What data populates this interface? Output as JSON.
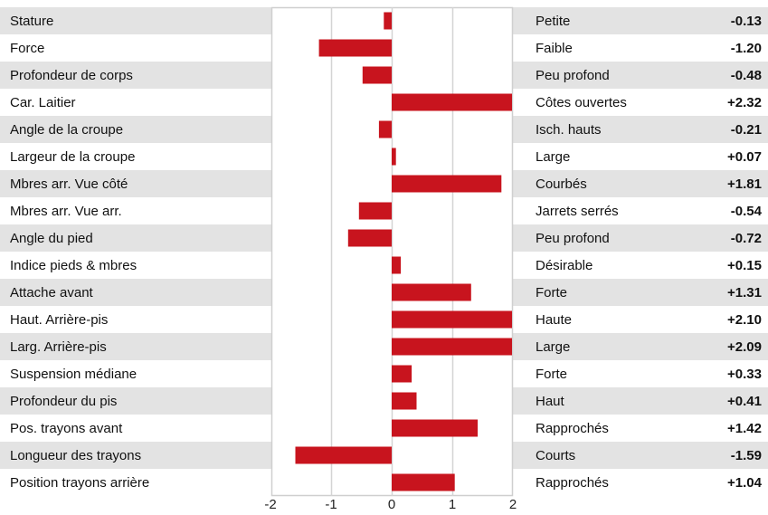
{
  "chart_data": {
    "type": "bar",
    "orientation": "horizontal",
    "title": "",
    "xlabel": "",
    "ylabel": "",
    "xlim": [
      -2,
      2
    ],
    "x_ticks": [
      "-2",
      "-1",
      "0",
      "1",
      "2"
    ],
    "grid": "vertical",
    "bar_color": "#c8141e",
    "row_band_color": "#e3e3e3",
    "categories": [
      "Stature",
      "Force",
      "Profondeur de corps",
      "Car. Laitier",
      "Angle de la croupe",
      "Largeur de la croupe",
      "Mbres arr. Vue côté",
      "Mbres arr. Vue arr.",
      "Angle du pied",
      "Indice pieds & mbres",
      "Attache avant",
      "Haut. Arrière-pis",
      "Larg. Arrière-pis",
      "Suspension médiane",
      "Profondeur du pis",
      "Pos. trayons avant",
      "Longueur des trayons",
      "Position trayons arrière"
    ],
    "values": [
      -0.13,
      -1.2,
      -0.48,
      2.32,
      -0.21,
      0.07,
      1.81,
      -0.54,
      -0.72,
      0.15,
      1.31,
      2.1,
      2.09,
      0.33,
      0.41,
      1.42,
      -1.59,
      1.04
    ],
    "descriptors": [
      "Petite",
      "Faible",
      "Peu profond",
      "Côtes ouvertes",
      "Isch. hauts",
      "Large",
      "Courbés",
      "Jarrets serrés",
      "Peu profond",
      "Désirable",
      "Forte",
      "Haute",
      "Large",
      "Forte",
      "Haut",
      "Rapprochés",
      "Courts",
      "Rapprochés"
    ],
    "value_labels": [
      "-0.13",
      "-1.20",
      "-0.48",
      "+2.32",
      "-0.21",
      "+0.07",
      "+1.81",
      "-0.54",
      "-0.72",
      "+0.15",
      "+1.31",
      "+2.10",
      "+2.09",
      "+0.33",
      "+0.41",
      "+1.42",
      "-1.59",
      "+1.04"
    ]
  }
}
